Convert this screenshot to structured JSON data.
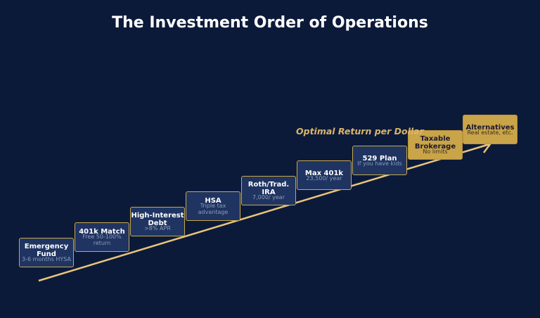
{
  "header": {
    "title": "The Investment Order of Operations"
  },
  "arrow_label": "Optimal Return per Dollar",
  "steps": [
    {
      "title": "Emergency Fund",
      "subtitle": "3-6 months HYSA"
    },
    {
      "title": "401k Match",
      "subtitle": "Free 50-100% return"
    },
    {
      "title": "High-Interest Debt",
      "subtitle": ">8% APR"
    },
    {
      "title": "HSA",
      "subtitle": "Triple tax advantage"
    },
    {
      "title": "Roth/Trad. IRA",
      "subtitle": "7,000/ year"
    },
    {
      "title": "Max 401k",
      "subtitle": "23,500/ year"
    },
    {
      "title": "529 Plan",
      "subtitle": "If you have kids"
    },
    {
      "title": "Taxable Brokerage",
      "subtitle": "No limits"
    },
    {
      "title": "Alternatives",
      "subtitle": "Real estate, etc."
    }
  ]
}
